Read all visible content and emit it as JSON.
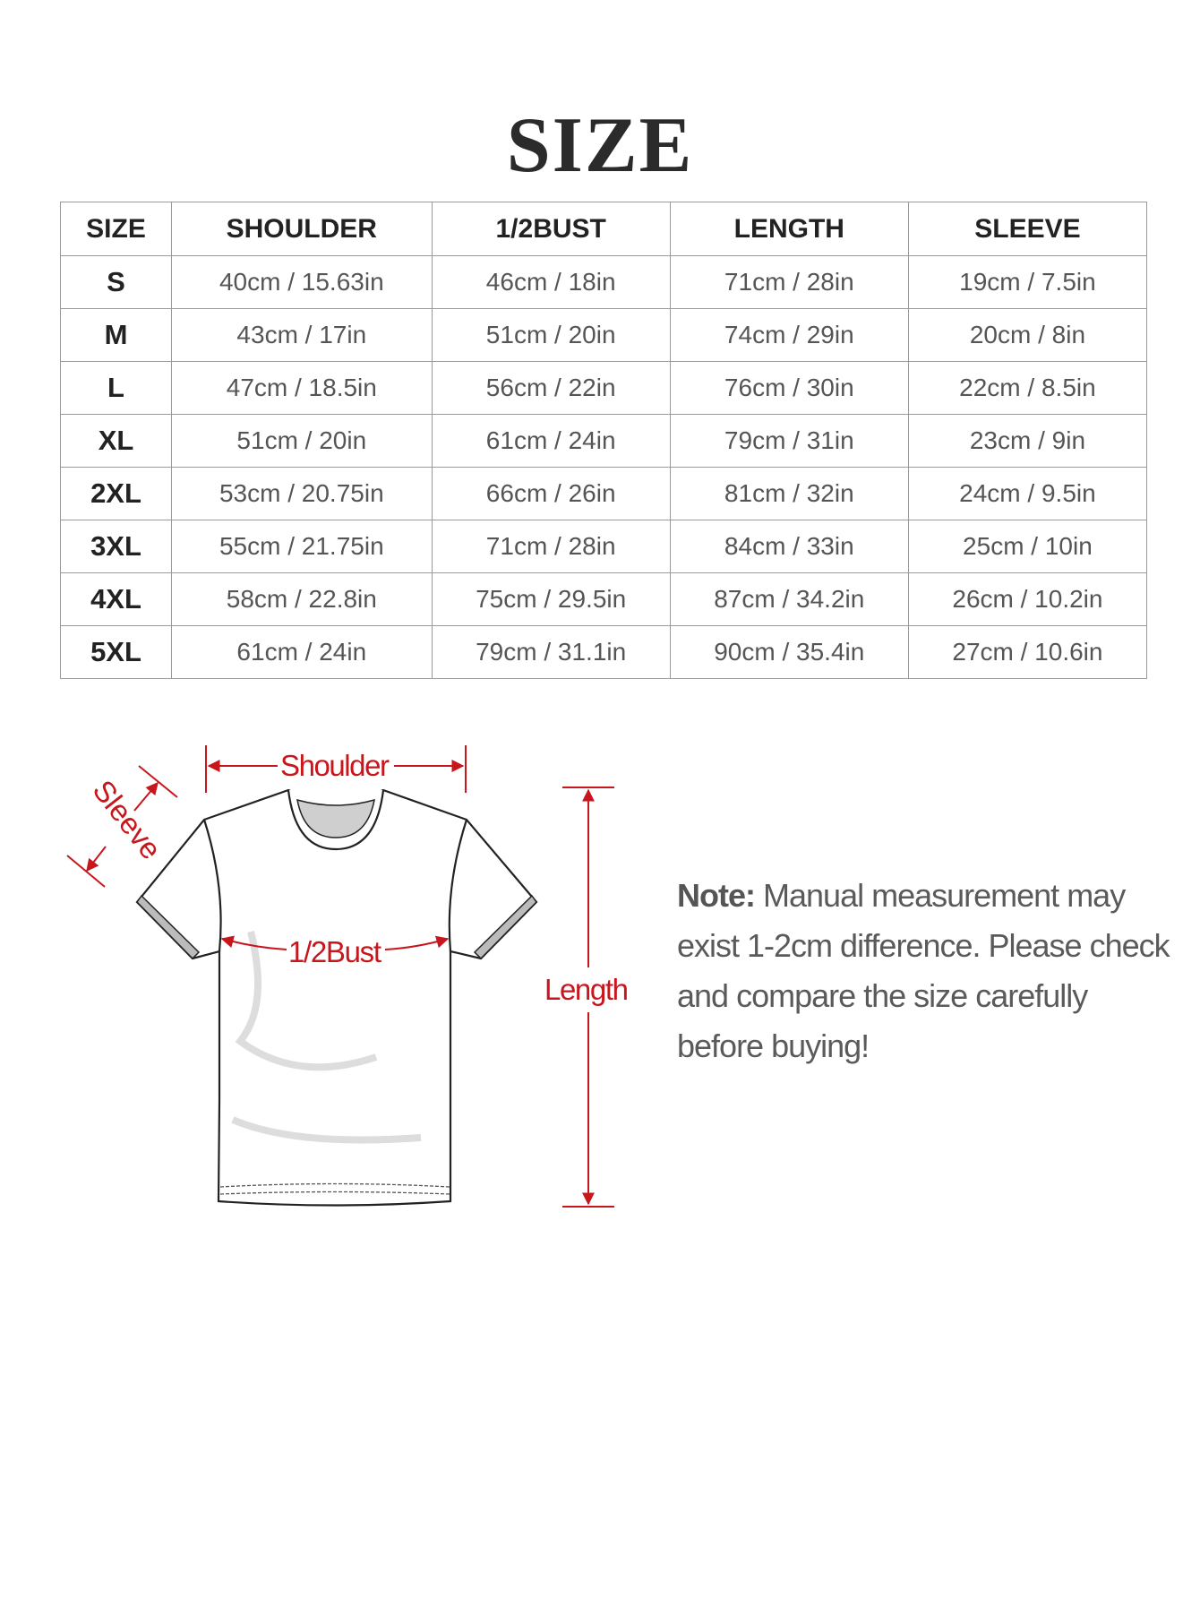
{
  "title": "SIZE",
  "table": {
    "headers": [
      "SIZE",
      "SHOULDER",
      "1/2BUST",
      "LENGTH",
      "SLEEVE"
    ],
    "rows": [
      [
        "S",
        "40cm / 15.63in",
        "46cm / 18in",
        "71cm / 28in",
        "19cm / 7.5in"
      ],
      [
        "M",
        "43cm / 17in",
        "51cm / 20in",
        "74cm / 29in",
        "20cm / 8in"
      ],
      [
        "L",
        "47cm / 18.5in",
        "56cm / 22in",
        "76cm / 30in",
        "22cm / 8.5in"
      ],
      [
        "XL",
        "51cm / 20in",
        "61cm / 24in",
        "79cm / 31in",
        "23cm / 9in"
      ],
      [
        "2XL",
        "53cm / 20.75in",
        "66cm / 26in",
        "81cm / 32in",
        "24cm / 9.5in"
      ],
      [
        "3XL",
        "55cm / 21.75in",
        "71cm / 28in",
        "84cm / 33in",
        "25cm / 10in"
      ],
      [
        "4XL",
        "58cm / 22.8in",
        "75cm / 29.5in",
        "87cm / 34.2in",
        "26cm / 10.2in"
      ],
      [
        "5XL",
        "61cm / 24in",
        "79cm / 31.1in",
        "90cm / 35.4in",
        "27cm / 10.6in"
      ]
    ]
  },
  "diagram": {
    "shoulder_label": "Shoulder",
    "sleeve_label": "Sleeve",
    "bust_label": "1/2Bust",
    "length_label": "Length",
    "accent_color": "#c8161d"
  },
  "note": {
    "label": "Note:",
    "text": "Manual measurement may exist 1-2cm difference. Please check and compare the size carefully before buying!"
  }
}
